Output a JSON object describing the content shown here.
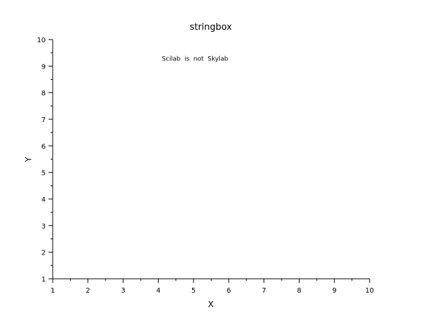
{
  "chart_data": {
    "type": "scatter",
    "title": "stringbox",
    "xlabel": "X",
    "ylabel": "Y",
    "xlim": [
      1,
      10
    ],
    "ylim": [
      1,
      10
    ],
    "xticks": [
      "1",
      "2",
      "3",
      "4",
      "5",
      "6",
      "7",
      "8",
      "9",
      "10"
    ],
    "yticks": [
      "1",
      "2",
      "3",
      "4",
      "5",
      "6",
      "7",
      "8",
      "9",
      "10"
    ],
    "minor_ticks_per_interval": 2,
    "grid": false,
    "series": [],
    "annotations": [
      {
        "text": "Scilab  is  not  Skylab",
        "x": 4.1,
        "y": 9.2
      }
    ]
  }
}
